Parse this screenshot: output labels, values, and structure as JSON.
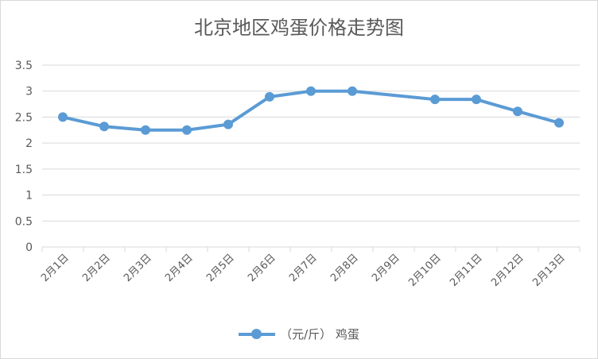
{
  "chart_data": {
    "type": "line",
    "title": "北京地区鸡蛋价格走势图",
    "xlabel": "",
    "ylabel": "",
    "ylim": [
      0,
      3.5
    ],
    "yticks": [
      "0",
      "0.5",
      "1",
      "1.5",
      "2",
      "2.5",
      "3",
      "3.5"
    ],
    "categories": [
      "2月1日",
      "2月2日",
      "2月3日",
      "2月4日",
      "2月5日",
      "2月6日",
      "2月7日",
      "2月8日",
      "2月9日",
      "2月10日",
      "2月11日",
      "2月12日",
      "2月13日"
    ],
    "series": [
      {
        "name": "（元/斤） 鸡蛋",
        "color": "#5b9bd5",
        "values": [
          2.5,
          2.32,
          2.25,
          2.25,
          2.36,
          2.89,
          3.0,
          3.0,
          null,
          2.84,
          2.84,
          2.61,
          2.39
        ]
      }
    ],
    "grid": true,
    "legend_position": "bottom"
  }
}
